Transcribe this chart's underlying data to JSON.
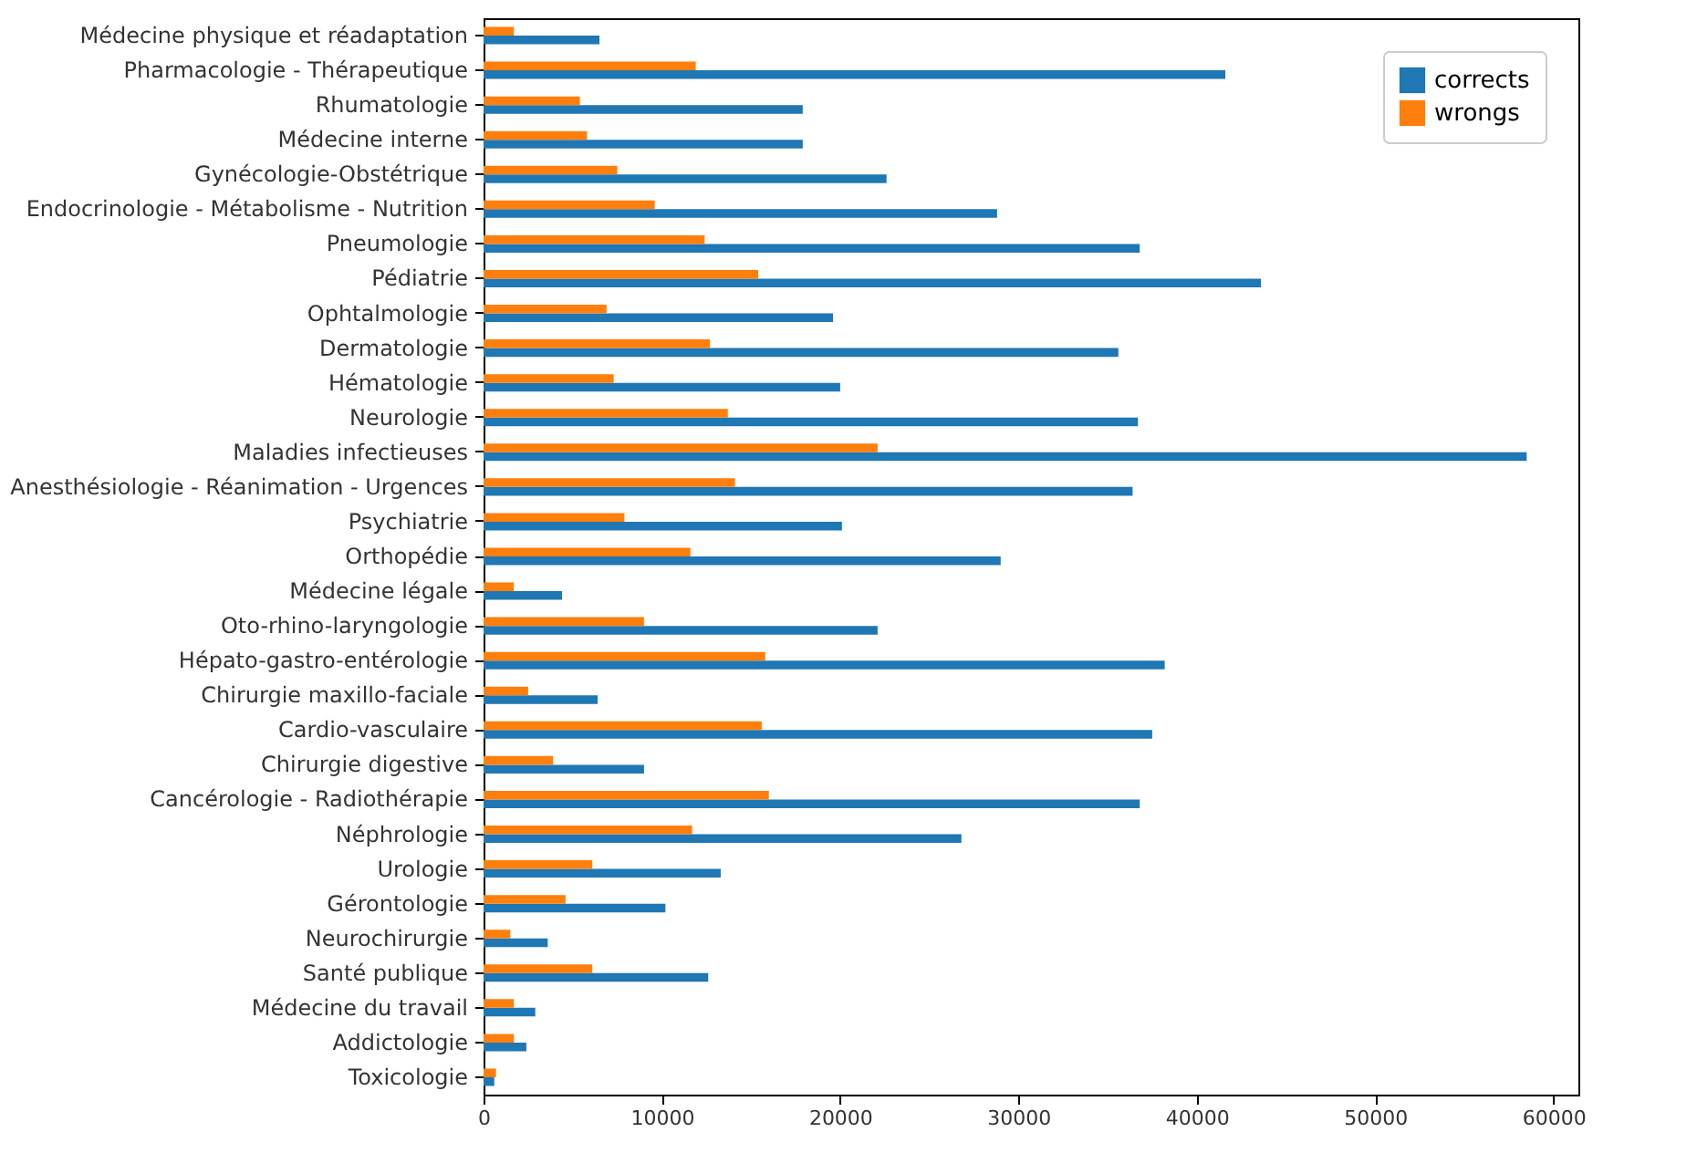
{
  "chart_data": {
    "type": "bar",
    "orientation": "horizontal",
    "categories": [
      "Médecine physique et réadaptation",
      "Pharmacologie  - Thérapeutique",
      "Rhumatologie",
      "Médecine interne",
      "Gynécologie-Obstétrique",
      "Endocrinologie - Métabolisme - Nutrition",
      "Pneumologie",
      "Pédiatrie",
      "Ophtalmologie",
      "Dermatologie",
      "Hématologie",
      "Neurologie",
      "Maladies infectieuses",
      "Anesthésiologie - Réanimation - Urgences",
      "Psychiatrie",
      "Orthopédie",
      "Médecine légale",
      "Oto-rhino-laryngologie",
      "Hépato-gastro-entérologie",
      "Chirurgie maxillo-faciale",
      "Cardio-vasculaire",
      "Chirurgie digestive",
      "Cancérologie - Radiothérapie",
      "Néphrologie",
      "Urologie",
      "Gérontologie",
      "Neurochirurgie",
      "Santé publique",
      "Médecine du travail",
      "Addictologie",
      "Toxicologie"
    ],
    "series": [
      {
        "name": "corrects",
        "color": "#1f77b4",
        "values": [
          6500,
          41600,
          17900,
          17900,
          22600,
          28800,
          36800,
          43600,
          19600,
          35600,
          20000,
          36700,
          58500,
          36400,
          20100,
          29000,
          4400,
          22100,
          38200,
          6400,
          37500,
          9000,
          36800,
          26800,
          13300,
          10200,
          3600,
          12600,
          2900,
          2400,
          600
        ]
      },
      {
        "name": "wrongs",
        "color": "#ff7f0e",
        "values": [
          1700,
          11900,
          5400,
          5800,
          7500,
          9600,
          12400,
          15400,
          6900,
          12700,
          7300,
          13700,
          22100,
          14100,
          7900,
          11600,
          1700,
          9000,
          15800,
          2500,
          15600,
          3900,
          16000,
          11700,
          6100,
          4600,
          1500,
          6100,
          1700,
          1700,
          700
        ]
      }
    ],
    "xlim": [
      0,
      61400
    ],
    "xticks": [
      0,
      10000,
      20000,
      30000,
      40000,
      50000,
      60000
    ],
    "legend": "top right",
    "grid": false
  }
}
